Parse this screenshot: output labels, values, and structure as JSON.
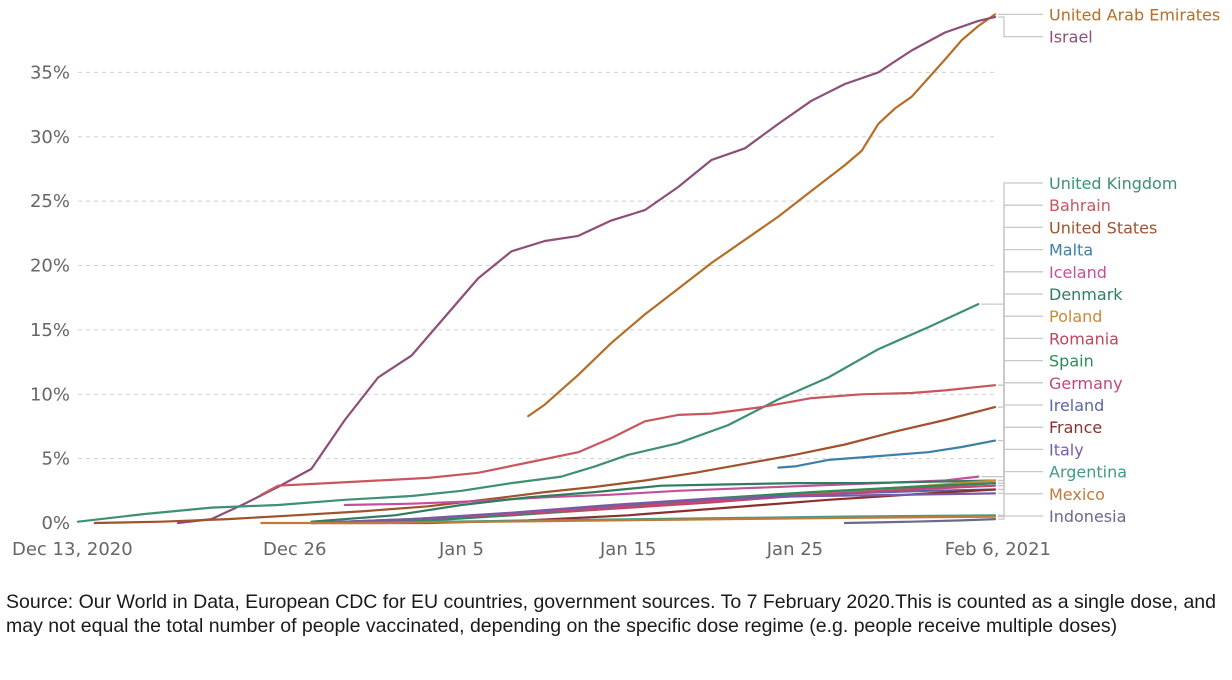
{
  "chart_data": {
    "type": "line",
    "title": "",
    "xlabel": "",
    "ylabel": "",
    "x_ticks": [
      "Dec 13, 2020",
      "Dec 26",
      "Jan 5",
      "Jan 15",
      "Jan 25",
      "Feb 6, 2021"
    ],
    "x_tick_dates": [
      "2020-12-13",
      "2020-12-26",
      "2021-01-05",
      "2021-01-15",
      "2021-01-25",
      "2021-02-06"
    ],
    "x_range": [
      "2020-12-13",
      "2021-02-06"
    ],
    "y_ticks": [
      "0%",
      "5%",
      "10%",
      "15%",
      "20%",
      "25%",
      "30%",
      "35%"
    ],
    "y_tick_values": [
      0,
      5,
      10,
      15,
      20,
      25,
      30,
      35
    ],
    "ylim": [
      0,
      40
    ],
    "grid": "horizontal dashed",
    "legend": "right, labels at line ends",
    "series": [
      {
        "name": "United Arab Emirates",
        "color": "#b66d26",
        "x": [
          "2021-01-09",
          "2021-01-10",
          "2021-01-12",
          "2021-01-14",
          "2021-01-16",
          "2021-01-18",
          "2021-01-20",
          "2021-01-22",
          "2021-01-24",
          "2021-01-26",
          "2021-01-28",
          "2021-01-29",
          "2021-01-30",
          "2021-01-31",
          "2021-02-01",
          "2021-02-03",
          "2021-02-04",
          "2021-02-05",
          "2021-02-06"
        ],
        "y": [
          8.3,
          9.2,
          11.5,
          14.0,
          16.2,
          18.2,
          20.2,
          22.0,
          23.8,
          25.8,
          27.8,
          28.9,
          31.0,
          32.2,
          33.1,
          36.0,
          37.5,
          38.6,
          39.5
        ]
      },
      {
        "name": "Israel",
        "color": "#8e4e77",
        "x": [
          "2020-12-19",
          "2020-12-21",
          "2020-12-23",
          "2020-12-25",
          "2020-12-27",
          "2020-12-29",
          "2020-12-31",
          "2021-01-02",
          "2021-01-04",
          "2021-01-06",
          "2021-01-08",
          "2021-01-10",
          "2021-01-12",
          "2021-01-14",
          "2021-01-16",
          "2021-01-18",
          "2021-01-20",
          "2021-01-22",
          "2021-01-24",
          "2021-01-26",
          "2021-01-28",
          "2021-01-30",
          "2021-02-01",
          "2021-02-03",
          "2021-02-05",
          "2021-02-06"
        ],
        "y": [
          0.0,
          0.3,
          1.5,
          2.8,
          4.2,
          8.0,
          11.3,
          13.0,
          16.0,
          19.0,
          21.1,
          21.9,
          22.3,
          23.5,
          24.3,
          26.1,
          28.2,
          29.1,
          31.0,
          32.8,
          34.1,
          35.0,
          36.7,
          38.1,
          39.0,
          39.3
        ]
      },
      {
        "name": "United Kingdom",
        "color": "#3e8f75",
        "x": [
          "2020-12-13",
          "2020-12-17",
          "2020-12-21",
          "2020-12-25",
          "2020-12-29",
          "2021-01-02",
          "2021-01-05",
          "2021-01-08",
          "2021-01-11",
          "2021-01-13",
          "2021-01-15",
          "2021-01-18",
          "2021-01-21",
          "2021-01-24",
          "2021-01-27",
          "2021-01-30",
          "2021-02-02",
          "2021-02-05"
        ],
        "y": [
          0.1,
          0.7,
          1.2,
          1.4,
          1.8,
          2.1,
          2.5,
          3.1,
          3.6,
          4.4,
          5.3,
          6.2,
          7.6,
          9.6,
          11.3,
          13.5,
          15.2,
          17.0
        ]
      },
      {
        "name": "Bahrain",
        "color": "#c9555e",
        "x": [
          "2020-12-24",
          "2020-12-25",
          "2020-12-28",
          "2020-12-31",
          "2021-01-03",
          "2021-01-06",
          "2021-01-09",
          "2021-01-12",
          "2021-01-14",
          "2021-01-16",
          "2021-01-18",
          "2021-01-20",
          "2021-01-23",
          "2021-01-26",
          "2021-01-29",
          "2021-02-01",
          "2021-02-03",
          "2021-02-06"
        ],
        "y": [
          2.2,
          2.9,
          3.1,
          3.3,
          3.5,
          3.9,
          4.7,
          5.5,
          6.6,
          7.9,
          8.4,
          8.5,
          9.0,
          9.7,
          10.0,
          10.1,
          10.3,
          10.7
        ]
      },
      {
        "name": "United States",
        "color": "#a0522d",
        "x": [
          "2020-12-14",
          "2020-12-18",
          "2020-12-22",
          "2020-12-26",
          "2020-12-30",
          "2021-01-03",
          "2021-01-07",
          "2021-01-10",
          "2021-01-13",
          "2021-01-16",
          "2021-01-19",
          "2021-01-22",
          "2021-01-25",
          "2021-01-28",
          "2021-01-31",
          "2021-02-03",
          "2021-02-06"
        ],
        "y": [
          0.0,
          0.1,
          0.3,
          0.6,
          0.9,
          1.3,
          1.9,
          2.4,
          2.8,
          3.3,
          3.9,
          4.6,
          5.3,
          6.1,
          7.1,
          8.0,
          9.0
        ]
      },
      {
        "name": "Malta",
        "color": "#3c7fa8",
        "x": [
          "2021-01-24",
          "2021-01-25",
          "2021-01-27",
          "2021-01-30",
          "2021-02-02",
          "2021-02-04",
          "2021-02-06"
        ],
        "y": [
          4.3,
          4.4,
          4.9,
          5.2,
          5.5,
          5.9,
          6.4
        ]
      },
      {
        "name": "Iceland",
        "color": "#c4509a",
        "x": [
          "2020-12-29",
          "2021-01-02",
          "2021-01-06",
          "2021-01-10",
          "2021-01-14",
          "2021-01-18",
          "2021-01-22",
          "2021-01-26",
          "2021-01-30",
          "2021-02-03",
          "2021-02-05"
        ],
        "y": [
          1.4,
          1.5,
          1.7,
          2.0,
          2.2,
          2.5,
          2.7,
          2.9,
          3.1,
          3.3,
          3.6
        ]
      },
      {
        "name": "Denmark",
        "color": "#2f7d61",
        "x": [
          "2020-12-27",
          "2021-01-01",
          "2021-01-05",
          "2021-01-09",
          "2021-01-13",
          "2021-01-17",
          "2021-01-21",
          "2021-01-25",
          "2021-01-29",
          "2021-02-02",
          "2021-02-06"
        ],
        "y": [
          0.1,
          0.6,
          1.4,
          2.0,
          2.4,
          2.9,
          3.0,
          3.1,
          3.1,
          3.2,
          3.3
        ]
      },
      {
        "name": "Romania",
        "color": "#c2435b",
        "x": [
          "2020-12-27",
          "2021-01-02",
          "2021-01-08",
          "2021-01-14",
          "2021-01-20",
          "2021-01-26",
          "2021-02-01",
          "2021-02-06"
        ],
        "y": [
          0.0,
          0.2,
          0.6,
          1.1,
          1.6,
          2.2,
          2.7,
          3.1
        ]
      },
      {
        "name": "Poland",
        "color": "#c98a3a",
        "x": [
          "2020-12-27",
          "2021-01-02",
          "2021-01-08",
          "2021-01-14",
          "2021-01-20",
          "2021-01-26",
          "2021-02-01",
          "2021-02-06"
        ],
        "y": [
          0.0,
          0.2,
          0.6,
          1.2,
          1.8,
          2.3,
          2.8,
          3.3
        ]
      },
      {
        "name": "Ireland",
        "color": "#5a64a8",
        "x": [
          "2020-12-29",
          "2021-01-04",
          "2021-01-10",
          "2021-01-16",
          "2021-01-22",
          "2021-01-28",
          "2021-02-02",
          "2021-02-06"
        ],
        "y": [
          0.0,
          0.3,
          0.9,
          1.5,
          2.0,
          2.3,
          2.5,
          2.6
        ]
      },
      {
        "name": "Spain",
        "color": "#2e8b57",
        "x": [
          "2020-12-27",
          "2021-01-02",
          "2021-01-08",
          "2021-01-14",
          "2021-01-20",
          "2021-01-26",
          "2021-02-01",
          "2021-02-06"
        ],
        "y": [
          0.0,
          0.1,
          0.6,
          1.2,
          1.9,
          2.4,
          2.8,
          3.1
        ]
      },
      {
        "name": "France",
        "color": "#8b2f2f",
        "x": [
          "2020-12-27",
          "2021-01-03",
          "2021-01-09",
          "2021-01-15",
          "2021-01-21",
          "2021-01-27",
          "2021-02-02",
          "2021-02-06"
        ],
        "y": [
          0.0,
          0.0,
          0.2,
          0.6,
          1.2,
          1.8,
          2.3,
          2.6
        ]
      },
      {
        "name": "Germany",
        "color": "#c2467a",
        "x": [
          "2020-12-27",
          "2021-01-02",
          "2021-01-08",
          "2021-01-14",
          "2021-01-20",
          "2021-01-26",
          "2021-02-01",
          "2021-02-06"
        ],
        "y": [
          0.0,
          0.3,
          0.7,
          1.2,
          1.7,
          2.2,
          2.6,
          2.9
        ]
      },
      {
        "name": "Italy",
        "color": "#7a5aa8",
        "x": [
          "2020-12-27",
          "2021-01-02",
          "2021-01-08",
          "2021-01-14",
          "2021-01-20",
          "2021-01-26",
          "2021-02-01",
          "2021-02-06"
        ],
        "y": [
          0.0,
          0.3,
          0.8,
          1.4,
          1.9,
          2.1,
          2.2,
          2.3
        ]
      },
      {
        "name": "Argentina",
        "color": "#3f9b8a",
        "x": [
          "2020-12-29",
          "2021-01-04",
          "2021-01-10",
          "2021-01-16",
          "2021-01-22",
          "2021-01-28",
          "2021-02-06"
        ],
        "y": [
          0.0,
          0.1,
          0.2,
          0.3,
          0.4,
          0.5,
          0.6
        ]
      },
      {
        "name": "Mexico",
        "color": "#c07a3a",
        "x": [
          "2020-12-24",
          "2020-12-31",
          "2021-01-07",
          "2021-01-14",
          "2021-01-21",
          "2021-01-28",
          "2021-02-06"
        ],
        "y": [
          0.0,
          0.0,
          0.1,
          0.2,
          0.3,
          0.4,
          0.5
        ]
      },
      {
        "name": "Indonesia",
        "color": "#6a6a8a",
        "x": [
          "2021-01-28",
          "2021-02-01",
          "2021-02-04",
          "2021-02-06"
        ],
        "y": [
          0.0,
          0.1,
          0.2,
          0.3
        ]
      }
    ]
  },
  "source_note": "Source: Our World in Data, European CDC for EU countries, government sources.  To 7 February 2020.This is counted as a single dose, and may not equal the total number of people vaccinated, depending on the specific dose regime (e.g. people receive multiple doses)"
}
